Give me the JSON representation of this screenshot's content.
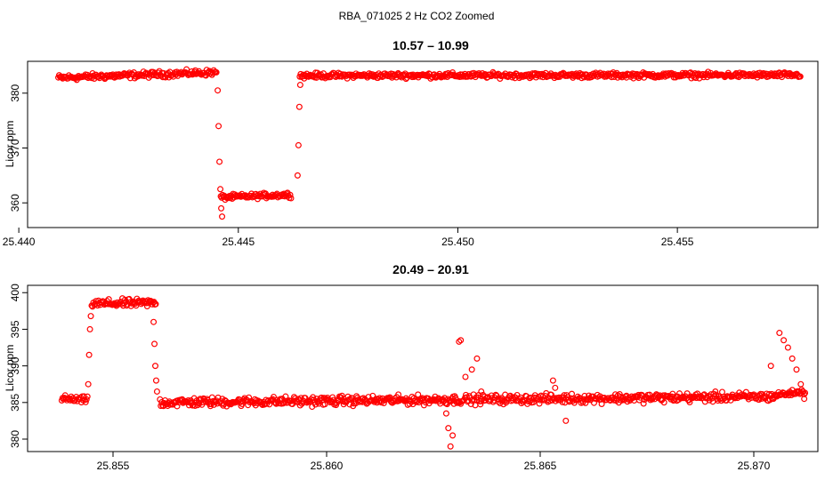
{
  "figure": {
    "title": "RBA_071025  2 Hz CO2 Zoomed",
    "point_color": "#ff0000",
    "background": "#ffffff"
  },
  "chart_data": [
    {
      "type": "scatter",
      "title": "10.57 – 10.99",
      "xlabel": "",
      "ylabel": "Licor ppm",
      "xlim": [
        25.4402,
        25.4582
      ],
      "ylim": [
        355.5,
        385.8
      ],
      "xticks": [
        25.44,
        25.445,
        25.45,
        25.455
      ],
      "xtick_labels": [
        "25.440",
        "25.445",
        "25.450",
        "25.455"
      ],
      "yticks": [
        360,
        370,
        380
      ],
      "ytick_labels": [
        "360",
        "370",
        "380"
      ],
      "marker": "open-circle",
      "grid": false,
      "series": [
        {
          "x_range": [
            25.4409,
            25.4578
          ],
          "segments": [
            {
              "x": [
                25.4409,
                25.4445
              ],
              "y": [
                382.8,
                383.8
              ],
              "noise": 0.7,
              "trend": "flat"
            },
            {
              "x": [
                25.4446,
                25.4462
              ],
              "y": [
                361.0,
                361.5
              ],
              "noise": 0.6,
              "trend": "flat"
            },
            {
              "x": [
                25.4464,
                25.4578
              ],
              "y": [
                383.2,
                383.3
              ],
              "noise": 0.6,
              "trend": "flat"
            }
          ],
          "transition_points": [
            {
              "x": 25.44453,
              "y": 380.5
            },
            {
              "x": 25.44455,
              "y": 374.0
            },
            {
              "x": 25.44457,
              "y": 367.5
            },
            {
              "x": 25.44459,
              "y": 362.5
            },
            {
              "x": 25.44461,
              "y": 359.0
            },
            {
              "x": 25.44463,
              "y": 357.5
            },
            {
              "x": 25.44635,
              "y": 365.0
            },
            {
              "x": 25.44637,
              "y": 370.5
            },
            {
              "x": 25.44639,
              "y": 377.5
            },
            {
              "x": 25.44641,
              "y": 381.5
            }
          ]
        }
      ]
    },
    {
      "type": "scatter",
      "title": "20.49 – 20.91",
      "xlabel": "",
      "ylabel": "Licor ppm",
      "xlim": [
        25.853,
        25.8715
      ],
      "ylim": [
        378.3,
        401.0
      ],
      "xticks": [
        25.855,
        25.86,
        25.865,
        25.87
      ],
      "xtick_labels": [
        "25.855",
        "25.860",
        "25.865",
        "25.870"
      ],
      "yticks": [
        380,
        385,
        390,
        395,
        400
      ],
      "ytick_labels": [
        "380",
        "385",
        "390",
        "395",
        "400"
      ],
      "marker": "open-circle",
      "grid": false,
      "series": [
        {
          "x_range": [
            25.8538,
            25.8712
          ],
          "segments": [
            {
              "x": [
                25.8538,
                25.8544
              ],
              "y": [
                385.5,
                385.3
              ],
              "noise": 0.6,
              "trend": "flat"
            },
            {
              "x": [
                25.8545,
                25.856
              ],
              "y": [
                398.5,
                398.6
              ],
              "noise": 0.7,
              "trend": "flat"
            },
            {
              "x": [
                25.8561,
                25.8705
              ],
              "y": [
                385.0,
                385.8
              ],
              "noise": 0.8,
              "trend": "flat"
            },
            {
              "x": [
                25.8705,
                25.8712
              ],
              "y": [
                386.0,
                386.5
              ],
              "noise": 0.5,
              "trend": "flat"
            }
          ],
          "transition_points": [
            {
              "x": 25.85442,
              "y": 387.5
            },
            {
              "x": 25.85444,
              "y": 391.5
            },
            {
              "x": 25.85446,
              "y": 395.0
            },
            {
              "x": 25.85448,
              "y": 396.8
            },
            {
              "x": 25.85595,
              "y": 396.0
            },
            {
              "x": 25.85597,
              "y": 393.0
            },
            {
              "x": 25.85599,
              "y": 390.0
            },
            {
              "x": 25.85601,
              "y": 388.0
            },
            {
              "x": 25.85603,
              "y": 386.5
            },
            {
              "x": 25.86285,
              "y": 381.5
            },
            {
              "x": 25.8629,
              "y": 379.0
            },
            {
              "x": 25.86295,
              "y": 380.5
            },
            {
              "x": 25.8628,
              "y": 383.5
            },
            {
              "x": 25.8631,
              "y": 393.3
            },
            {
              "x": 25.86314,
              "y": 393.5
            },
            {
              "x": 25.86325,
              "y": 388.5
            },
            {
              "x": 25.8634,
              "y": 389.5
            },
            {
              "x": 25.86352,
              "y": 391.0
            },
            {
              "x": 25.86362,
              "y": 386.5
            },
            {
              "x": 25.8653,
              "y": 388.0
            },
            {
              "x": 25.86535,
              "y": 387.0
            },
            {
              "x": 25.8656,
              "y": 382.5
            },
            {
              "x": 25.8704,
              "y": 390.0
            },
            {
              "x": 25.8706,
              "y": 394.5
            },
            {
              "x": 25.8707,
              "y": 393.5
            },
            {
              "x": 25.8708,
              "y": 392.5
            },
            {
              "x": 25.8709,
              "y": 391.0
            },
            {
              "x": 25.871,
              "y": 389.5
            },
            {
              "x": 25.8711,
              "y": 387.5
            },
            {
              "x": 25.87118,
              "y": 385.5
            }
          ]
        }
      ]
    }
  ]
}
